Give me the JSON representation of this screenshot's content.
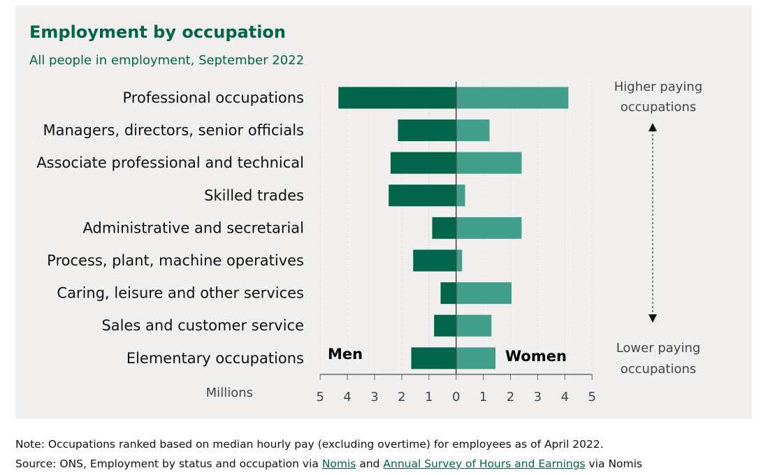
{
  "title": "Employment by occupation",
  "subtitle": "All people in employment, September 2022",
  "chart_data": {
    "type": "bar",
    "orientation": "horizontal-diverging",
    "categories": [
      "Professional occupations",
      "Managers, directors, senior officials",
      "Associate professional and technical",
      "Skilled trades",
      "Administrative and secretarial",
      "Process, plant, machine operatives",
      "Caring, leisure and other services",
      "Sales and customer service",
      "Elementary occupations"
    ],
    "series": [
      {
        "name": "Men",
        "color": "#00654a",
        "values": [
          4.33,
          2.14,
          2.41,
          2.48,
          0.88,
          1.58,
          0.57,
          0.81,
          1.65
        ]
      },
      {
        "name": "Women",
        "color": "#419e8a",
        "values": [
          4.13,
          1.23,
          2.41,
          0.33,
          2.41,
          0.22,
          2.04,
          1.3,
          1.45
        ]
      }
    ],
    "xlabel": "Millions",
    "xlim": [
      -5,
      5
    ],
    "tick_labels": [
      "5",
      "4",
      "3",
      "2",
      "1",
      "0",
      "1",
      "2",
      "3",
      "4",
      "5"
    ],
    "grid": true,
    "annotations": {
      "top": [
        "Higher paying",
        "occupations"
      ],
      "bottom": [
        "Lower paying",
        "occupations"
      ]
    }
  },
  "notes": {
    "note": "Note: Occupations ranked based on median hourly pay (excluding overtime) for employees as of April 2022.",
    "source_prefix": "Source: ONS, Employment by status and occupation via ",
    "link1": "Nomis",
    "and": " and ",
    "link2": "Annual Survey of Hours and Earnings",
    "suffix": " via Nomis"
  }
}
